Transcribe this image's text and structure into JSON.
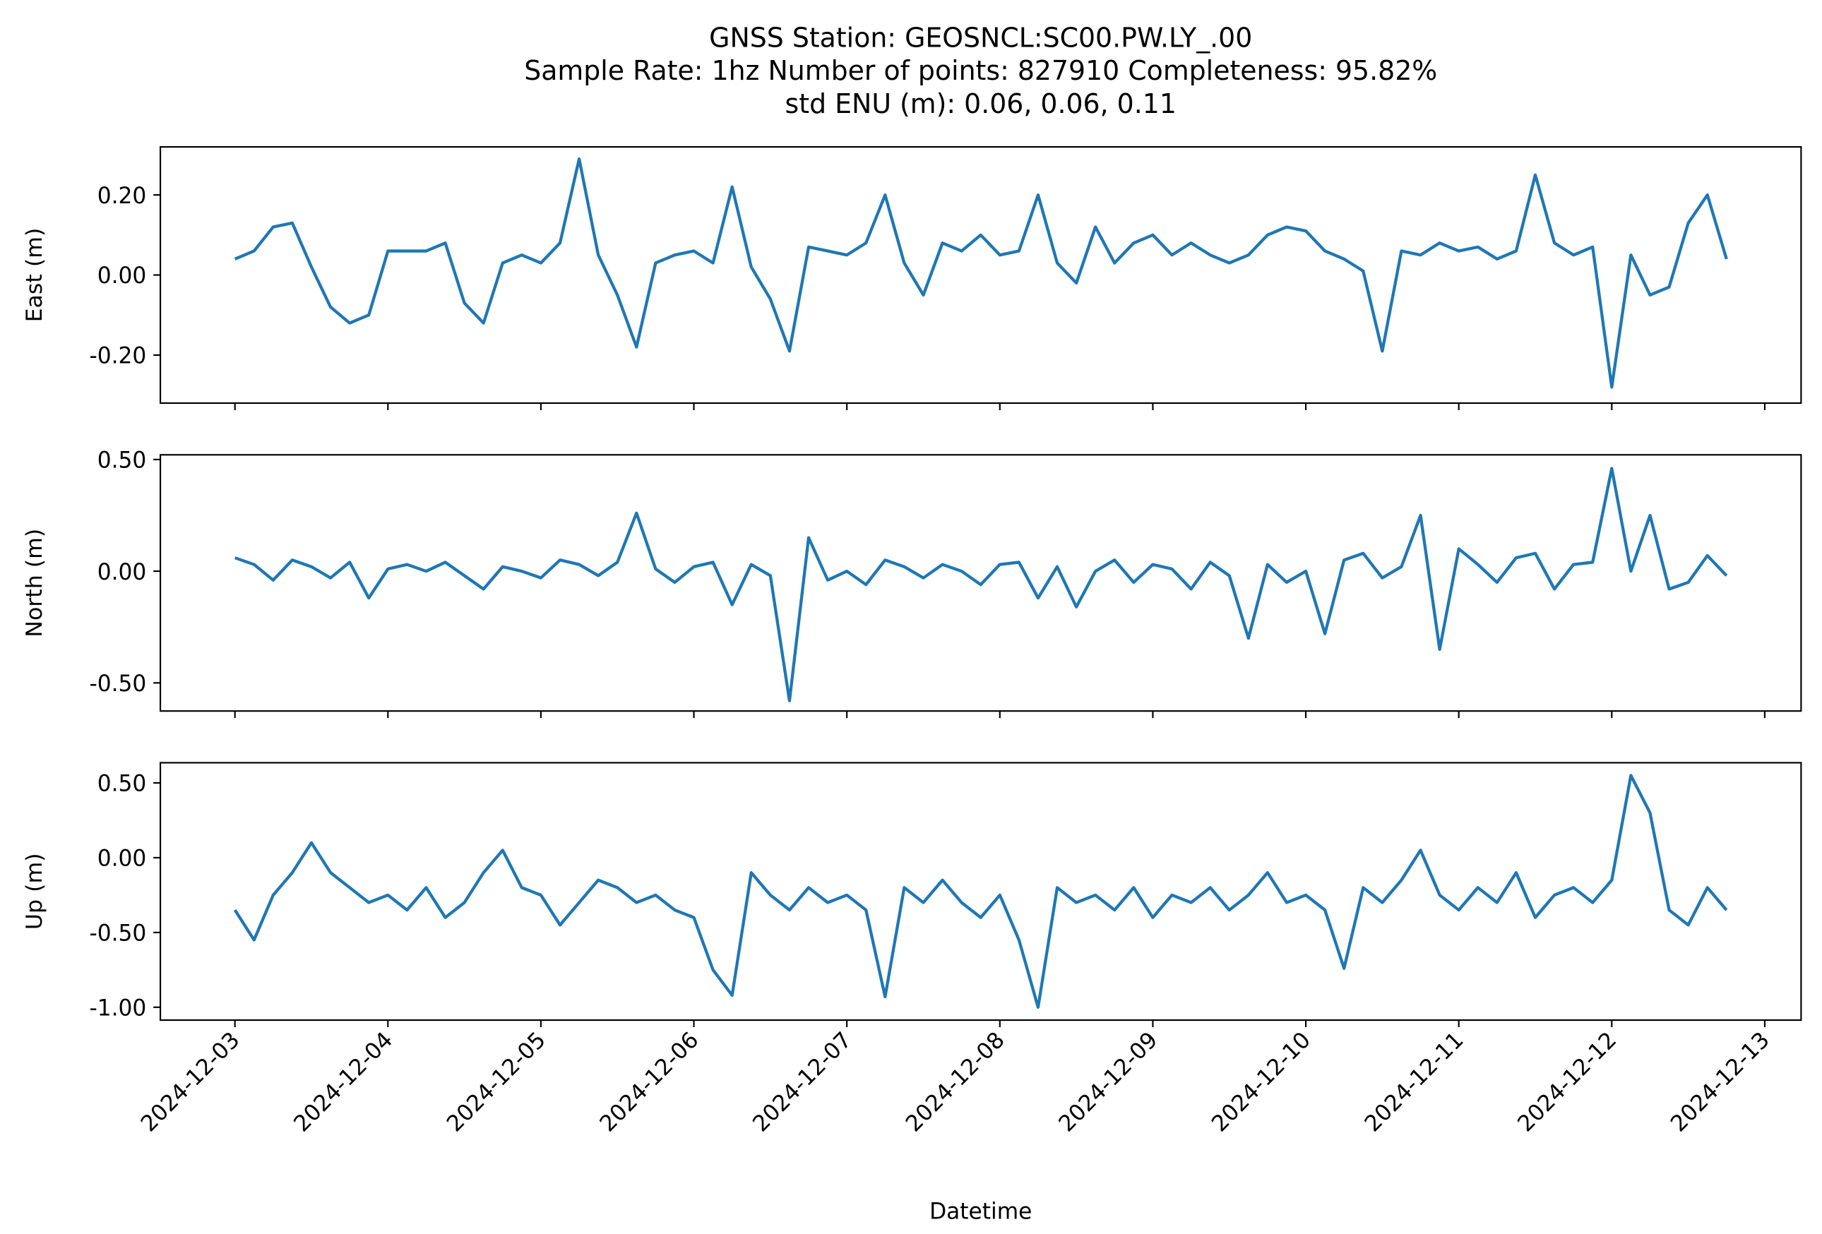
{
  "chart_data": [
    {
      "type": "line",
      "title": [
        "GNSS Station: GEOSNCL:SC00.PW.LY_.00",
        "Sample Rate: 1hz   Number of points: 827910    Completeness:  95.82%",
        "std ENU (m):  0.06, 0.06, 0.11"
      ],
      "ylabel": "East (m)",
      "color": "#1f77b4",
      "xlim": [
        "2024-12-02T12:18",
        "2024-12-13T05:42"
      ],
      "xticks": [
        "2024-12-03",
        "2024-12-04",
        "2024-12-05",
        "2024-12-06",
        "2024-12-07",
        "2024-12-08",
        "2024-12-09",
        "2024-12-10",
        "2024-12-11",
        "2024-12-12",
        "2024-12-13"
      ],
      "ylim": [
        -0.32,
        0.32
      ],
      "yticks": [
        {
          "value": -0.2,
          "label": "-0.20"
        },
        {
          "value": 0,
          "label": "0.00"
        },
        {
          "value": 0.2,
          "label": "0.20"
        }
      ],
      "x": [
        "2024-12-03T00:00",
        "2024-12-03T03:00",
        "2024-12-03T06:00",
        "2024-12-03T09:00",
        "2024-12-03T12:00",
        "2024-12-03T15:00",
        "2024-12-03T18:00",
        "2024-12-03T21:00",
        "2024-12-04T00:00",
        "2024-12-04T03:00",
        "2024-12-04T06:00",
        "2024-12-04T09:00",
        "2024-12-04T12:00",
        "2024-12-04T15:00",
        "2024-12-04T18:00",
        "2024-12-04T21:00",
        "2024-12-05T00:00",
        "2024-12-05T03:00",
        "2024-12-05T06:00",
        "2024-12-05T09:00",
        "2024-12-05T12:00",
        "2024-12-05T15:00",
        "2024-12-05T18:00",
        "2024-12-05T21:00",
        "2024-12-06T00:00",
        "2024-12-06T03:00",
        "2024-12-06T06:00",
        "2024-12-06T09:00",
        "2024-12-06T12:00",
        "2024-12-06T15:00",
        "2024-12-06T18:00",
        "2024-12-06T21:00",
        "2024-12-07T00:00",
        "2024-12-07T03:00",
        "2024-12-07T06:00",
        "2024-12-07T09:00",
        "2024-12-07T12:00",
        "2024-12-07T15:00",
        "2024-12-07T18:00",
        "2024-12-07T21:00",
        "2024-12-08T00:00",
        "2024-12-08T03:00",
        "2024-12-08T06:00",
        "2024-12-08T09:00",
        "2024-12-08T12:00",
        "2024-12-08T15:00",
        "2024-12-08T18:00",
        "2024-12-08T21:00",
        "2024-12-09T00:00",
        "2024-12-09T03:00",
        "2024-12-09T06:00",
        "2024-12-09T09:00",
        "2024-12-09T12:00",
        "2024-12-09T15:00",
        "2024-12-09T18:00",
        "2024-12-09T21:00",
        "2024-12-10T00:00",
        "2024-12-10T03:00",
        "2024-12-10T06:00",
        "2024-12-10T09:00",
        "2024-12-10T12:00",
        "2024-12-10T15:00",
        "2024-12-10T18:00",
        "2024-12-10T21:00",
        "2024-12-11T00:00",
        "2024-12-11T03:00",
        "2024-12-11T06:00",
        "2024-12-11T09:00",
        "2024-12-11T12:00",
        "2024-12-11T15:00",
        "2024-12-11T18:00",
        "2024-12-11T21:00",
        "2024-12-12T00:00",
        "2024-12-12T03:00",
        "2024-12-12T06:00",
        "2024-12-12T09:00",
        "2024-12-12T12:00",
        "2024-12-12T15:00",
        "2024-12-12T18:00"
      ],
      "values": [
        0.04,
        0.06,
        0.12,
        0.13,
        0.02,
        -0.08,
        -0.12,
        -0.1,
        0.06,
        0.06,
        0.06,
        0.08,
        -0.07,
        -0.12,
        0.03,
        0.05,
        0.03,
        0.08,
        0.29,
        0.05,
        -0.05,
        -0.18,
        0.03,
        0.05,
        0.06,
        0.03,
        0.22,
        0.02,
        -0.06,
        -0.19,
        0.07,
        0.06,
        0.05,
        0.08,
        0.2,
        0.03,
        -0.05,
        0.08,
        0.06,
        0.1,
        0.05,
        0.06,
        0.2,
        0.03,
        -0.02,
        0.12,
        0.03,
        0.08,
        0.1,
        0.05,
        0.08,
        0.05,
        0.03,
        0.05,
        0.1,
        0.12,
        0.11,
        0.06,
        0.04,
        0.01,
        -0.19,
        0.06,
        0.05,
        0.08,
        0.06,
        0.07,
        0.04,
        0.06,
        0.25,
        0.08,
        0.05,
        0.07,
        -0.28,
        0.05,
        -0.05,
        -0.03,
        0.13,
        0.2,
        0.04
      ]
    },
    {
      "type": "line",
      "ylabel": "North (m)",
      "color": "#1f77b4",
      "xlim": [
        "2024-12-02T12:18",
        "2024-12-13T05:42"
      ],
      "xticks": [
        "2024-12-03",
        "2024-12-04",
        "2024-12-05",
        "2024-12-06",
        "2024-12-07",
        "2024-12-08",
        "2024-12-09",
        "2024-12-10",
        "2024-12-11",
        "2024-12-12",
        "2024-12-13"
      ],
      "ylim": [
        -0.626,
        0.521
      ],
      "yticks": [
        {
          "value": -0.5,
          "label": "-0.50"
        },
        {
          "value": 0,
          "label": "0.00"
        },
        {
          "value": 0.5,
          "label": "0.50"
        }
      ],
      "x": [
        "2024-12-03T00:00",
        "2024-12-03T03:00",
        "2024-12-03T06:00",
        "2024-12-03T09:00",
        "2024-12-03T12:00",
        "2024-12-03T15:00",
        "2024-12-03T18:00",
        "2024-12-03T21:00",
        "2024-12-04T00:00",
        "2024-12-04T03:00",
        "2024-12-04T06:00",
        "2024-12-04T09:00",
        "2024-12-04T12:00",
        "2024-12-04T15:00",
        "2024-12-04T18:00",
        "2024-12-04T21:00",
        "2024-12-05T00:00",
        "2024-12-05T03:00",
        "2024-12-05T06:00",
        "2024-12-05T09:00",
        "2024-12-05T12:00",
        "2024-12-05T15:00",
        "2024-12-05T18:00",
        "2024-12-05T21:00",
        "2024-12-06T00:00",
        "2024-12-06T03:00",
        "2024-12-06T06:00",
        "2024-12-06T09:00",
        "2024-12-06T12:00",
        "2024-12-06T15:00",
        "2024-12-06T18:00",
        "2024-12-06T21:00",
        "2024-12-07T00:00",
        "2024-12-07T03:00",
        "2024-12-07T06:00",
        "2024-12-07T09:00",
        "2024-12-07T12:00",
        "2024-12-07T15:00",
        "2024-12-07T18:00",
        "2024-12-07T21:00",
        "2024-12-08T00:00",
        "2024-12-08T03:00",
        "2024-12-08T06:00",
        "2024-12-08T09:00",
        "2024-12-08T12:00",
        "2024-12-08T15:00",
        "2024-12-08T18:00",
        "2024-12-08T21:00",
        "2024-12-09T00:00",
        "2024-12-09T03:00",
        "2024-12-09T06:00",
        "2024-12-09T09:00",
        "2024-12-09T12:00",
        "2024-12-09T15:00",
        "2024-12-09T18:00",
        "2024-12-09T21:00",
        "2024-12-10T00:00",
        "2024-12-10T03:00",
        "2024-12-10T06:00",
        "2024-12-10T09:00",
        "2024-12-10T12:00",
        "2024-12-10T15:00",
        "2024-12-10T18:00",
        "2024-12-10T21:00",
        "2024-12-11T00:00",
        "2024-12-11T03:00",
        "2024-12-11T06:00",
        "2024-12-11T09:00",
        "2024-12-11T12:00",
        "2024-12-11T15:00",
        "2024-12-11T18:00",
        "2024-12-11T21:00",
        "2024-12-12T00:00",
        "2024-12-12T03:00",
        "2024-12-12T06:00",
        "2024-12-12T09:00",
        "2024-12-12T12:00",
        "2024-12-12T15:00",
        "2024-12-12T18:00"
      ],
      "values": [
        0.06,
        0.03,
        -0.04,
        0.05,
        0.02,
        -0.03,
        0.04,
        -0.12,
        0.01,
        0.03,
        0.0,
        0.04,
        -0.02,
        -0.08,
        0.02,
        0.0,
        -0.03,
        0.05,
        0.03,
        -0.02,
        0.04,
        0.26,
        0.01,
        -0.05,
        0.02,
        0.04,
        -0.15,
        0.03,
        -0.02,
        -0.58,
        0.15,
        -0.04,
        0.0,
        -0.06,
        0.05,
        0.02,
        -0.03,
        0.03,
        0.0,
        -0.06,
        0.03,
        0.04,
        -0.12,
        0.02,
        -0.16,
        0.0,
        0.05,
        -0.05,
        0.03,
        0.01,
        -0.08,
        0.04,
        -0.02,
        -0.3,
        0.03,
        -0.05,
        0.0,
        -0.28,
        0.05,
        0.08,
        -0.03,
        0.02,
        0.25,
        -0.35,
        0.1,
        0.03,
        -0.05,
        0.06,
        0.08,
        -0.08,
        0.03,
        0.04,
        0.46,
        0.0,
        0.25,
        -0.08,
        -0.05,
        0.07,
        -0.02
      ]
    },
    {
      "type": "line",
      "ylabel": "Up (m)",
      "xlabel": "Datetime",
      "color": "#1f77b4",
      "xlim": [
        "2024-12-02T12:18",
        "2024-12-13T05:42"
      ],
      "xticks": [
        "2024-12-03",
        "2024-12-04",
        "2024-12-05",
        "2024-12-06",
        "2024-12-07",
        "2024-12-08",
        "2024-12-09",
        "2024-12-10",
        "2024-12-11",
        "2024-12-12",
        "2024-12-13"
      ],
      "ylim": [
        -1.086,
        0.635
      ],
      "yticks": [
        {
          "value": -1,
          "label": "-1.00"
        },
        {
          "value": -0.5,
          "label": "-0.50"
        },
        {
          "value": 0,
          "label": "0.00"
        },
        {
          "value": 0.5,
          "label": "0.50"
        }
      ],
      "x": [
        "2024-12-03T00:00",
        "2024-12-03T03:00",
        "2024-12-03T06:00",
        "2024-12-03T09:00",
        "2024-12-03T12:00",
        "2024-12-03T15:00",
        "2024-12-03T18:00",
        "2024-12-03T21:00",
        "2024-12-04T00:00",
        "2024-12-04T03:00",
        "2024-12-04T06:00",
        "2024-12-04T09:00",
        "2024-12-04T12:00",
        "2024-12-04T15:00",
        "2024-12-04T18:00",
        "2024-12-04T21:00",
        "2024-12-05T00:00",
        "2024-12-05T03:00",
        "2024-12-05T06:00",
        "2024-12-05T09:00",
        "2024-12-05T12:00",
        "2024-12-05T15:00",
        "2024-12-05T18:00",
        "2024-12-05T21:00",
        "2024-12-06T00:00",
        "2024-12-06T03:00",
        "2024-12-06T06:00",
        "2024-12-06T09:00",
        "2024-12-06T12:00",
        "2024-12-06T15:00",
        "2024-12-06T18:00",
        "2024-12-06T21:00",
        "2024-12-07T00:00",
        "2024-12-07T03:00",
        "2024-12-07T06:00",
        "2024-12-07T09:00",
        "2024-12-07T12:00",
        "2024-12-07T15:00",
        "2024-12-07T18:00",
        "2024-12-07T21:00",
        "2024-12-08T00:00",
        "2024-12-08T03:00",
        "2024-12-08T06:00",
        "2024-12-08T09:00",
        "2024-12-08T12:00",
        "2024-12-08T15:00",
        "2024-12-08T18:00",
        "2024-12-08T21:00",
        "2024-12-09T00:00",
        "2024-12-09T03:00",
        "2024-12-09T06:00",
        "2024-12-09T09:00",
        "2024-12-09T12:00",
        "2024-12-09T15:00",
        "2024-12-09T18:00",
        "2024-12-09T21:00",
        "2024-12-10T00:00",
        "2024-12-10T03:00",
        "2024-12-10T06:00",
        "2024-12-10T09:00",
        "2024-12-10T12:00",
        "2024-12-10T15:00",
        "2024-12-10T18:00",
        "2024-12-10T21:00",
        "2024-12-11T00:00",
        "2024-12-11T03:00",
        "2024-12-11T06:00",
        "2024-12-11T09:00",
        "2024-12-11T12:00",
        "2024-12-11T15:00",
        "2024-12-11T18:00",
        "2024-12-11T21:00",
        "2024-12-12T00:00",
        "2024-12-12T03:00",
        "2024-12-12T06:00",
        "2024-12-12T09:00",
        "2024-12-12T12:00",
        "2024-12-12T15:00",
        "2024-12-12T18:00"
      ],
      "values": [
        -0.35,
        -0.55,
        -0.25,
        -0.1,
        0.1,
        -0.1,
        -0.2,
        -0.3,
        -0.25,
        -0.35,
        -0.2,
        -0.4,
        -0.3,
        -0.1,
        0.05,
        -0.2,
        -0.25,
        -0.45,
        -0.3,
        -0.15,
        -0.2,
        -0.3,
        -0.25,
        -0.35,
        -0.4,
        -0.75,
        -0.92,
        -0.1,
        -0.25,
        -0.35,
        -0.2,
        -0.3,
        -0.25,
        -0.35,
        -0.93,
        -0.2,
        -0.3,
        -0.15,
        -0.3,
        -0.4,
        -0.25,
        -0.55,
        -1.0,
        -0.2,
        -0.3,
        -0.25,
        -0.35,
        -0.2,
        -0.4,
        -0.25,
        -0.3,
        -0.2,
        -0.35,
        -0.25,
        -0.1,
        -0.3,
        -0.25,
        -0.35,
        -0.74,
        -0.2,
        -0.3,
        -0.15,
        0.05,
        -0.25,
        -0.35,
        -0.2,
        -0.3,
        -0.1,
        -0.4,
        -0.25,
        -0.2,
        -0.3,
        -0.15,
        0.55,
        0.3,
        -0.35,
        -0.45,
        -0.2,
        -0.35
      ]
    }
  ]
}
